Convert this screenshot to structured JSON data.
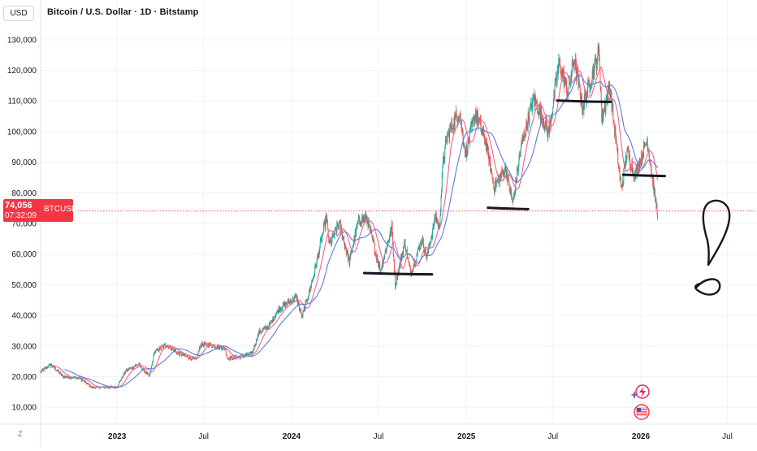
{
  "header": {
    "currency": "USD",
    "title": "Bitcoin / U.S. Dollar · 1D · Bitstamp"
  },
  "price_label": {
    "value": "74,056",
    "countdown": "07:32:09",
    "symbol": "BTCUSD",
    "color": "#f23645"
  },
  "timezone_label": "Z",
  "colors": {
    "up": "#26a69a",
    "down": "#ef5350",
    "ma_fast": "#f06292",
    "ma_slow": "#5b7bd5",
    "annotation": "#131722",
    "grid": "#f0f3fa"
  },
  "chart_data": {
    "type": "candlestick",
    "title": "Bitcoin / U.S. Dollar · 1D · Bitstamp",
    "ylim": [
      5000,
      135000
    ],
    "y_ticks": [
      10000,
      20000,
      30000,
      40000,
      50000,
      60000,
      70000,
      80000,
      90000,
      100000,
      110000,
      120000,
      130000
    ],
    "y_tick_labels": [
      "10,000",
      "20,000",
      "30,000",
      "40,000",
      "50,000",
      "60,000",
      "70,000",
      "80,000",
      "90,000",
      "100,000",
      "110,000",
      "120,000",
      "130,000"
    ],
    "x_range": [
      "2022-07-25",
      "2026-09-01"
    ],
    "x_ticks": [
      {
        "date": "2023-01-01",
        "label": "2023",
        "bold": true
      },
      {
        "date": "2023-07-01",
        "label": "Jul",
        "bold": false
      },
      {
        "date": "2024-01-01",
        "label": "2024",
        "bold": true
      },
      {
        "date": "2024-07-01",
        "label": "Jul",
        "bold": false
      },
      {
        "date": "2025-01-01",
        "label": "2025",
        "bold": true
      },
      {
        "date": "2025-07-01",
        "label": "Jul",
        "bold": false
      },
      {
        "date": "2026-01-01",
        "label": "2026",
        "bold": true
      },
      {
        "date": "2026-07-01",
        "label": "Jul",
        "bold": false
      }
    ],
    "current_price": 74056,
    "price_path": [
      [
        "2022-07-25",
        21500
      ],
      [
        "2022-08-15",
        24000
      ],
      [
        "2022-09-10",
        20000
      ],
      [
        "2022-10-15",
        19500
      ],
      [
        "2022-11-09",
        16500
      ],
      [
        "2022-11-25",
        16500
      ],
      [
        "2022-12-31",
        16550
      ],
      [
        "2023-01-20",
        22000
      ],
      [
        "2023-02-15",
        24000
      ],
      [
        "2023-03-10",
        20000
      ],
      [
        "2023-03-20",
        28000
      ],
      [
        "2023-04-14",
        30500
      ],
      [
        "2023-05-10",
        27500
      ],
      [
        "2023-06-15",
        25500
      ],
      [
        "2023-06-25",
        30500
      ],
      [
        "2023-07-15",
        30300
      ],
      [
        "2023-08-15",
        29200
      ],
      [
        "2023-08-20",
        26000
      ],
      [
        "2023-09-15",
        26500
      ],
      [
        "2023-10-10",
        27500
      ],
      [
        "2023-10-25",
        34500
      ],
      [
        "2023-11-15",
        36500
      ],
      [
        "2023-12-05",
        42000
      ],
      [
        "2024-01-11",
        46000
      ],
      [
        "2024-01-23",
        39500
      ],
      [
        "2024-02-15",
        52000
      ],
      [
        "2024-03-14",
        72000
      ],
      [
        "2024-03-20",
        63000
      ],
      [
        "2024-04-10",
        70000
      ],
      [
        "2024-05-01",
        57500
      ],
      [
        "2024-05-20",
        71000
      ],
      [
        "2024-06-07",
        71500
      ],
      [
        "2024-07-05",
        54500
      ],
      [
        "2024-07-29",
        69000
      ],
      [
        "2024-08-05",
        50000
      ],
      [
        "2024-08-25",
        64000
      ],
      [
        "2024-09-06",
        53500
      ],
      [
        "2024-09-30",
        65000
      ],
      [
        "2024-10-10",
        59000
      ],
      [
        "2024-10-29",
        72500
      ],
      [
        "2024-11-05",
        68000
      ],
      [
        "2024-11-13",
        90000
      ],
      [
        "2024-11-22",
        98500
      ],
      [
        "2024-12-17",
        107000
      ],
      [
        "2024-12-30",
        92500
      ],
      [
        "2025-01-20",
        106000
      ],
      [
        "2025-02-10",
        97000
      ],
      [
        "2025-02-28",
        82000
      ],
      [
        "2025-03-24",
        88000
      ],
      [
        "2025-04-08",
        76500
      ],
      [
        "2025-04-25",
        95000
      ],
      [
        "2025-05-22",
        111000
      ],
      [
        "2025-06-22",
        99500
      ],
      [
        "2025-07-14",
        122500
      ],
      [
        "2025-08-02",
        112500
      ],
      [
        "2025-08-14",
        124000
      ],
      [
        "2025-09-01",
        108000
      ],
      [
        "2025-10-06",
        126000
      ],
      [
        "2025-10-11",
        104500
      ],
      [
        "2025-10-28",
        115000
      ],
      [
        "2025-11-21",
        81000
      ],
      [
        "2025-12-03",
        93500
      ],
      [
        "2025-12-20",
        85500
      ],
      [
        "2026-01-14",
        97500
      ],
      [
        "2026-01-31",
        78000
      ],
      [
        "2026-02-05",
        73500
      ]
    ],
    "moving_averages": [
      {
        "window_days": 20,
        "color": "#f06292"
      },
      {
        "window_days": 50,
        "color": "#5b7bd5"
      }
    ],
    "support_lines": [
      {
        "from": "2024-06-01",
        "to": "2024-10-21",
        "price": 53700
      },
      {
        "from": "2025-02-15",
        "to": "2025-05-10",
        "price": 75000
      },
      {
        "from": "2025-07-10",
        "to": "2025-10-30",
        "price": 110000
      },
      {
        "from": "2025-11-25",
        "to": "2026-02-20",
        "price": 85800
      }
    ]
  }
}
